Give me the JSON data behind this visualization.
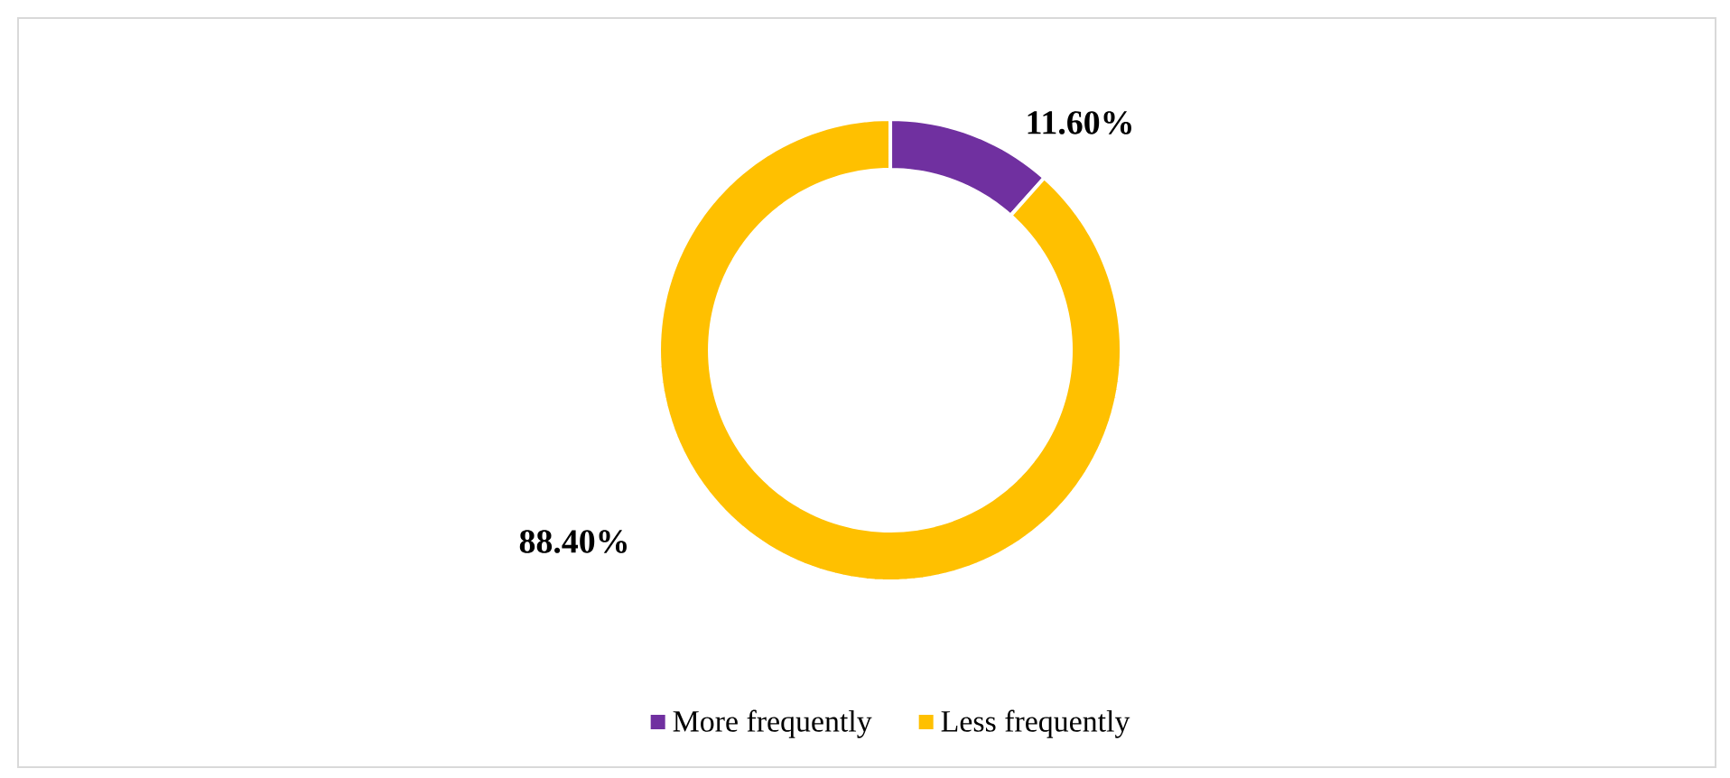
{
  "chart_data": {
    "type": "donut",
    "categories": [
      "More frequently",
      "Less frequently"
    ],
    "values": [
      11.6,
      88.4
    ],
    "colors": [
      "#7030a0",
      "#ffc000"
    ],
    "value_labels": [
      "11.60%",
      "88.40%"
    ],
    "legend": "bottom"
  }
}
